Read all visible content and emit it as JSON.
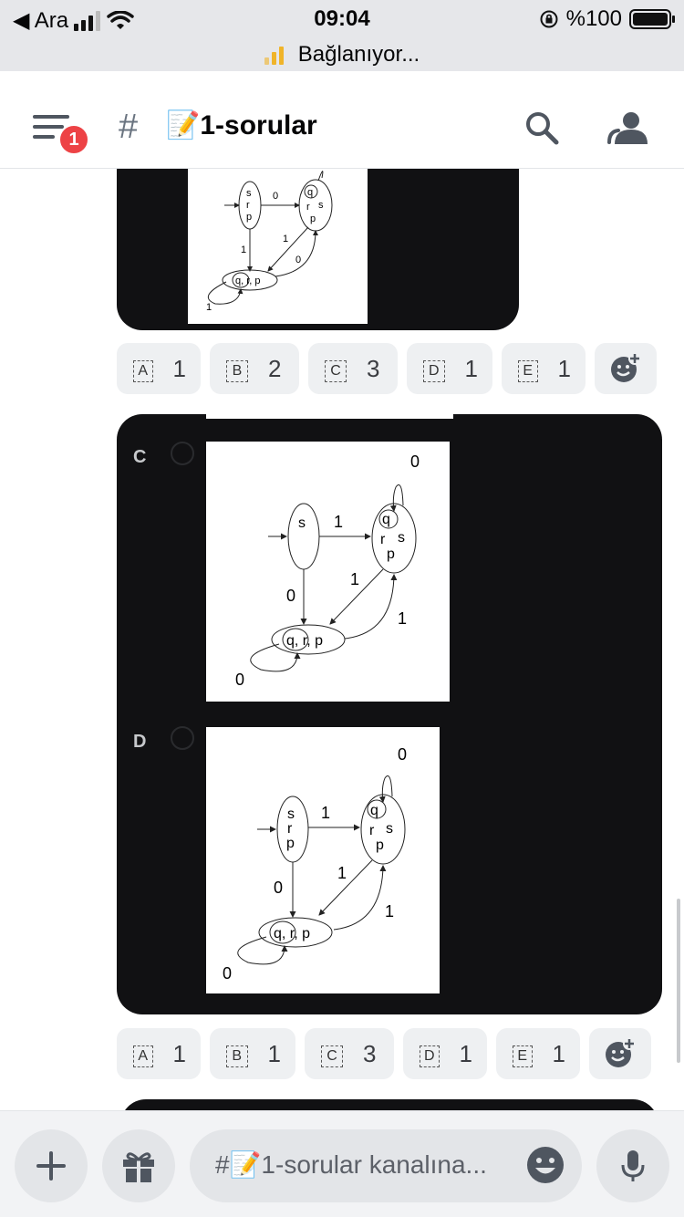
{
  "status_bar": {
    "back_label": "◀ Ara",
    "time": "09:04",
    "battery": "%100",
    "connecting": "Bağlanıyor..."
  },
  "header": {
    "badge_count": "1",
    "hash": "#",
    "channel_title": "📝1-sorular"
  },
  "question_top": {
    "diagram": {
      "left_state": [
        "s",
        "r",
        "p"
      ],
      "right_state": [
        "q",
        "r",
        "s",
        "p"
      ],
      "bottom_state": "q, r, p",
      "labels": {
        "top": "0",
        "down": "1",
        "mid": "1",
        "right": "0",
        "loop": "1"
      }
    }
  },
  "reactions_1": [
    {
      "letter": "A",
      "count": "1"
    },
    {
      "letter": "B",
      "count": "2"
    },
    {
      "letter": "C",
      "count": "3"
    },
    {
      "letter": "D",
      "count": "1"
    },
    {
      "letter": "E",
      "count": "1"
    }
  ],
  "options": [
    {
      "letter": "C",
      "left_state": "s",
      "right_state": [
        "q",
        "r",
        "s",
        "p"
      ],
      "bottom_state": "q, r, p",
      "labels": {
        "self": "0",
        "top": "1",
        "down": "0",
        "mid": "1",
        "right": "1",
        "loop": "0"
      }
    },
    {
      "letter": "D",
      "left_state": "s\nr\np",
      "right_state": [
        "q",
        "r",
        "s",
        "p"
      ],
      "bottom_state": "q, r, p",
      "labels": {
        "self": "0",
        "top": "1",
        "down": "0",
        "mid": "1",
        "right": "1",
        "loop": "0"
      }
    }
  ],
  "reactions_2": [
    {
      "letter": "A",
      "count": "1"
    },
    {
      "letter": "B",
      "count": "1"
    },
    {
      "letter": "C",
      "count": "3"
    },
    {
      "letter": "D",
      "count": "1"
    },
    {
      "letter": "E",
      "count": "1"
    }
  ],
  "composer": {
    "placeholder": "#📝1-sorular kanalına..."
  }
}
